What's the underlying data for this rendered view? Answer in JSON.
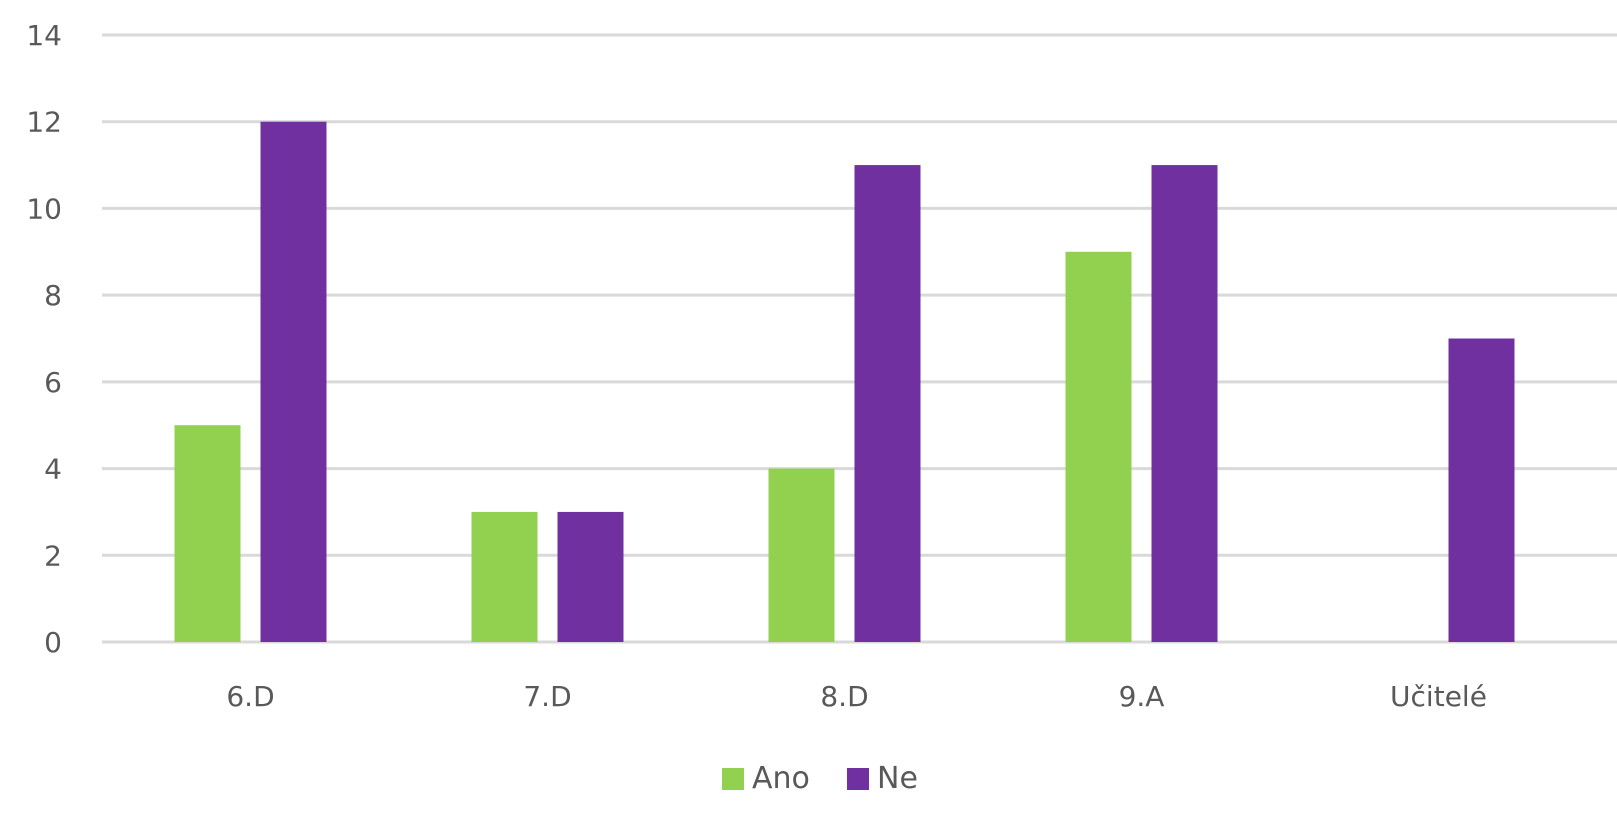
{
  "chart_data": {
    "type": "bar",
    "title": "",
    "xlabel": "",
    "ylabel": "",
    "categories": [
      "6.D",
      "7.D",
      "8.D",
      "9.A",
      "Učitelé"
    ],
    "series": [
      {
        "name": "Ano",
        "values": [
          5,
          3,
          4,
          9,
          0
        ],
        "color": "#92d050"
      },
      {
        "name": "Ne",
        "values": [
          12,
          3,
          11,
          11,
          7
        ],
        "color": "#7030a0"
      }
    ],
    "ylim": [
      0,
      14
    ],
    "yticks": [
      "0",
      "2",
      "4",
      "6",
      "8",
      "10",
      "12",
      "14"
    ],
    "grid": true,
    "legend": "bottom-center",
    "gridline_color": "#d9d9d9",
    "text_color": "#595959"
  }
}
